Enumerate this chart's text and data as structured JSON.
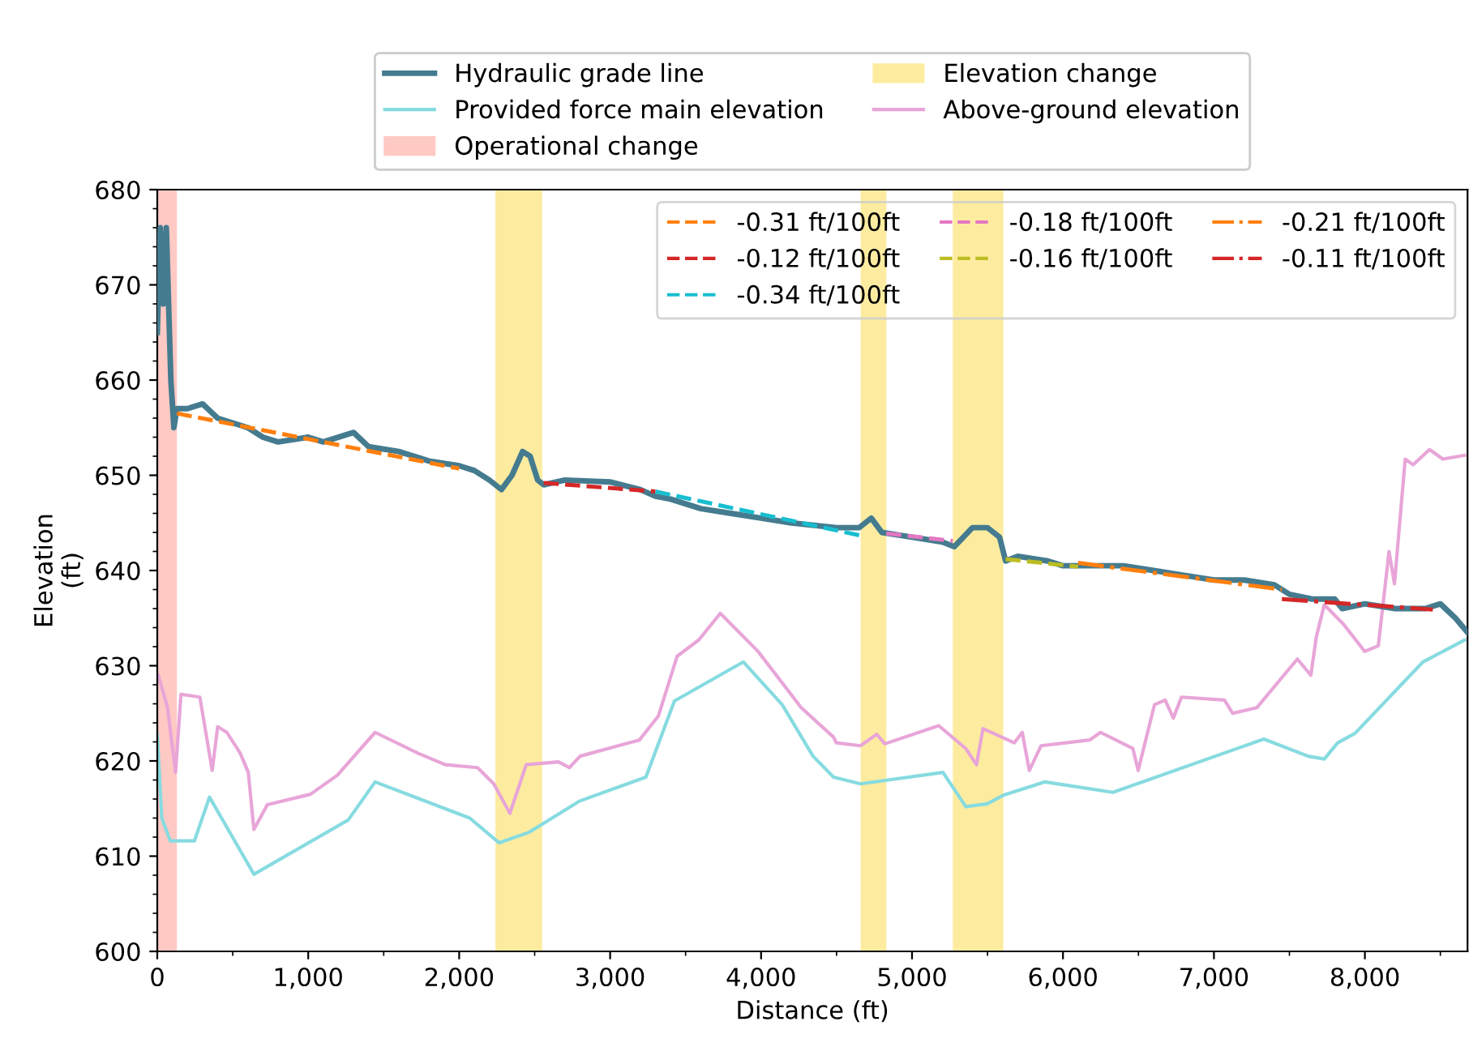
{
  "chart_data": {
    "type": "line",
    "xlabel": "Distance (ft)",
    "ylabel": "Elevation\n(ft)",
    "xlim": [
      0,
      8680
    ],
    "ylim": [
      600,
      680
    ],
    "xticks": [
      0,
      {
        "value": 1000,
        "label": "1,000"
      },
      {
        "value": 2000,
        "label": "2,000"
      },
      {
        "value": 3000,
        "label": "3,000"
      },
      {
        "value": 4000,
        "label": "4,000"
      },
      {
        "value": 5000,
        "label": "5,000"
      },
      {
        "value": 6000,
        "label": "6,000"
      },
      {
        "value": 7000,
        "label": "7,000"
      },
      {
        "value": 8000,
        "label": "8,000"
      }
    ],
    "yticks": [
      600,
      610,
      620,
      630,
      640,
      650,
      660,
      670,
      680
    ],
    "grid": false,
    "legend": "top",
    "bands": [
      {
        "axis": "x",
        "from": 0,
        "to": 130,
        "label": "Operational change",
        "color": "#ffc9c4"
      },
      {
        "axis": "x",
        "from": 2240,
        "to": 2550,
        "label": "Elevation change",
        "color": "#fdeca0"
      },
      {
        "axis": "x",
        "from": 4660,
        "to": 4830,
        "label": null,
        "color": "#fdeca0"
      },
      {
        "axis": "x",
        "from": 5270,
        "to": 5605,
        "label": null,
        "color": "#fdeca0"
      }
    ],
    "series": [
      {
        "name": "Hydraulic grade line",
        "color": "#457b8f",
        "line_style": "solid",
        "x": [
          0,
          20,
          40,
          60,
          90,
          110,
          130,
          200,
          300,
          400,
          600,
          700,
          800,
          1000,
          1100,
          1300,
          1400,
          1600,
          1800,
          2000,
          2100,
          2200,
          2280,
          2350,
          2420,
          2470,
          2520,
          2560,
          2700,
          3000,
          3200,
          3300,
          3400,
          3600,
          3800,
          4000,
          4200,
          4500,
          4650,
          4730,
          4800,
          5000,
          5200,
          5280,
          5400,
          5500,
          5580,
          5620,
          5700,
          5900,
          6000,
          6200,
          6400,
          6600,
          6800,
          7000,
          7200,
          7400,
          7500,
          7650,
          7800,
          7850,
          8000,
          8200,
          8400,
          8500,
          8600,
          8680
        ],
        "values": [
          665,
          676,
          668,
          676,
          660,
          655,
          657,
          657,
          657.5,
          656,
          655,
          654,
          653.5,
          654,
          653.5,
          654.5,
          653,
          652.5,
          651.5,
          651,
          650.5,
          649.5,
          648.5,
          650,
          652.5,
          652,
          649.5,
          649,
          649.5,
          649.3,
          648.5,
          647.8,
          647.5,
          646.5,
          646,
          645.5,
          645,
          644.5,
          644.5,
          645.5,
          644,
          643.5,
          643,
          642.5,
          644.5,
          644.5,
          643.5,
          641,
          641.5,
          641,
          640.5,
          640.5,
          640.5,
          640,
          639.5,
          639,
          639,
          638.5,
          637.5,
          637,
          637,
          636,
          636.5,
          636,
          636,
          636.5,
          635,
          633.5
        ]
      },
      {
        "name": "Provided force main elevation",
        "color": "#86dbe0",
        "line_style": "solid",
        "x": [
          0,
          30,
          86,
          246,
          346,
          640,
          1265,
          1443,
          2070,
          2265,
          2462,
          2800,
          3237,
          3426,
          3883,
          4140,
          4344,
          4480,
          4659,
          5205,
          5356,
          5498,
          5605,
          5881,
          6331,
          7331,
          7624,
          7731,
          7820,
          7935,
          8385,
          8660
        ],
        "values": [
          622.8,
          614,
          611.6,
          611.6,
          616.2,
          608.1,
          613.8,
          617.8,
          614,
          611.4,
          612.5,
          615.8,
          618.3,
          626.3,
          630.4,
          625.9,
          620.5,
          618.3,
          617.6,
          618.8,
          615.2,
          615.5,
          616.4,
          617.8,
          616.7,
          622.3,
          620.5,
          620.2,
          621.9,
          622.9,
          630.4,
          632.7
        ]
      },
      {
        "name": "Above-ground elevation",
        "color": "#e8a5d8",
        "line_style": "solid",
        "x": [
          7,
          68,
          121,
          157,
          282,
          364,
          400,
          461,
          550,
          603,
          640,
          729,
          1015,
          1193,
          1443,
          1729,
          1908,
          2122,
          2229,
          2336,
          2444,
          2658,
          2730,
          2801,
          3194,
          3319,
          3444,
          3587,
          3730,
          3980,
          4266,
          4480,
          4498,
          4659,
          4766,
          4820,
          5177,
          5356,
          5427,
          5470,
          5677,
          5730,
          5777,
          5855,
          6177,
          6249,
          6463,
          6498,
          6606,
          6677,
          6731,
          6785,
          7070,
          7124,
          7285,
          7463,
          7553,
          7642,
          7678,
          7731,
          7856,
          7999,
          8089,
          8160,
          8196,
          8267,
          8320,
          8428,
          8517,
          8660
        ],
        "values": [
          629,
          625.6,
          618.8,
          627,
          626.7,
          619,
          623.6,
          623,
          620.8,
          618.8,
          612.8,
          615.4,
          616.5,
          618.5,
          623,
          620.8,
          619.6,
          619.3,
          617.6,
          614.5,
          619.6,
          619.9,
          619.3,
          620.5,
          622.2,
          624.7,
          631,
          632.7,
          635.5,
          631.5,
          625.6,
          622.5,
          621.9,
          621.6,
          622.8,
          621.8,
          623.7,
          621.3,
          619.6,
          623.4,
          621.9,
          623,
          619,
          621.6,
          622.2,
          623,
          621.3,
          619,
          625.9,
          626.4,
          624.5,
          626.7,
          626.4,
          625,
          625.6,
          629,
          630.7,
          629,
          633,
          636.4,
          634.4,
          631.5,
          632.1,
          642,
          638.6,
          651.7,
          651.1,
          652.7,
          651.7,
          652.1
        ]
      },
      {
        "name": "-0.31 ft/100ft",
        "color": "#ff7f0e",
        "line_style": "dashed",
        "x": [
          130,
          2000
        ],
        "values": [
          656.5,
          650.7
        ]
      },
      {
        "name": "-0.12 ft/100ft",
        "color": "#d62728",
        "line_style": "dashed",
        "x": [
          2560,
          3300
        ],
        "values": [
          649.2,
          648.3
        ]
      },
      {
        "name": "-0.34 ft/100ft",
        "color": "#17becf",
        "line_style": "dashed",
        "x": [
          3300,
          4650
        ],
        "values": [
          648.3,
          643.7
        ]
      },
      {
        "name": "-0.18 ft/100ft",
        "color": "#e377c2",
        "line_style": "dashed",
        "x": [
          4830,
          5270
        ],
        "values": [
          643.9,
          643.1
        ]
      },
      {
        "name": "-0.16 ft/100ft",
        "color": "#bcbd22",
        "line_style": "dashed",
        "x": [
          5620,
          6100
        ],
        "values": [
          641.2,
          640.4
        ]
      },
      {
        "name": "-0.21 ft/100ft",
        "color": "#ff7f0e",
        "line_style": "dashdot",
        "x": [
          6100,
          7450
        ],
        "values": [
          640.8,
          638.0
        ]
      },
      {
        "name": "-0.11 ft/100ft",
        "color": "#d62728",
        "line_style": "dashdot",
        "x": [
          7450,
          8450
        ],
        "values": [
          637.0,
          635.9
        ]
      }
    ]
  }
}
